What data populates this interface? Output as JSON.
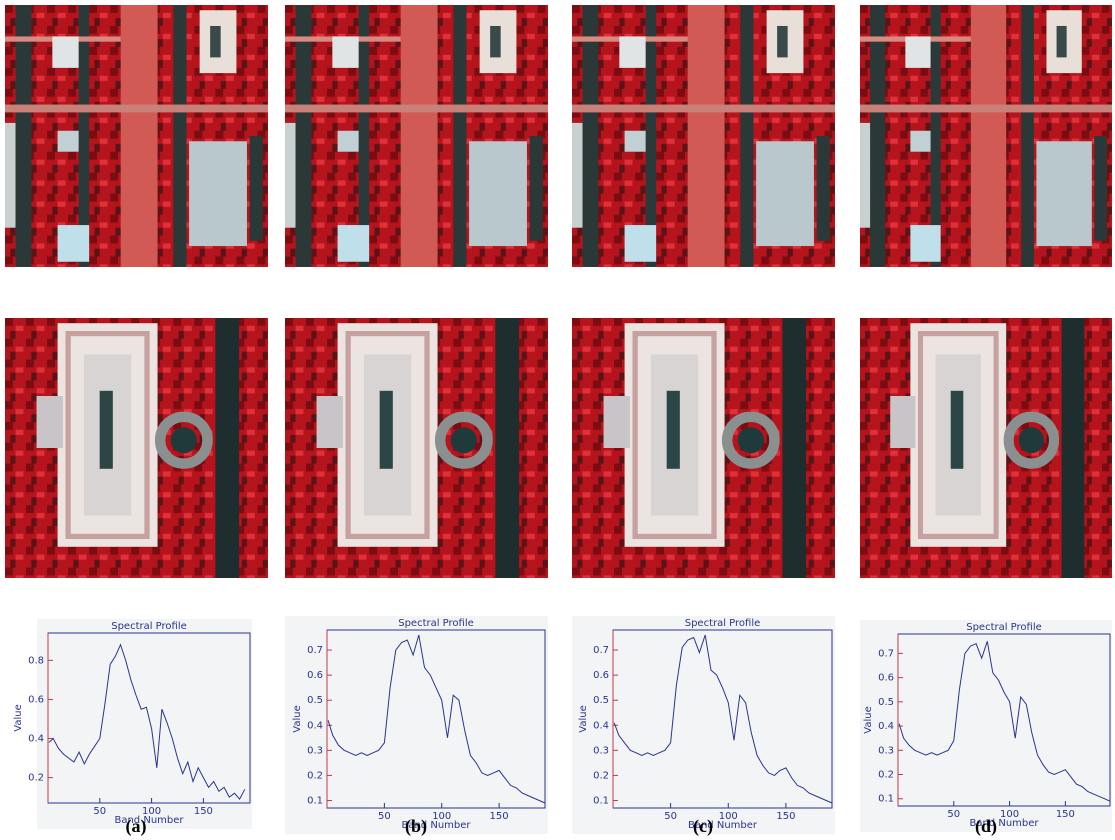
{
  "labels": [
    "(a)",
    "(b)",
    "(c)",
    "(d)"
  ],
  "chart_data": [
    {
      "type": "line",
      "title": "Spectral Profile",
      "x_label": "Band Number",
      "y_label": "Value",
      "color": "#27358f",
      "x": [
        1,
        5,
        10,
        15,
        20,
        25,
        30,
        35,
        40,
        45,
        50,
        55,
        60,
        65,
        70,
        75,
        80,
        85,
        90,
        95,
        100,
        105,
        110,
        115,
        120,
        125,
        130,
        135,
        140,
        145,
        150,
        155,
        160,
        165,
        170,
        175,
        180,
        185,
        190
      ],
      "values": [
        0.38,
        0.4,
        0.35,
        0.32,
        0.3,
        0.28,
        0.33,
        0.27,
        0.32,
        0.36,
        0.4,
        0.58,
        0.78,
        0.82,
        0.88,
        0.8,
        0.7,
        0.62,
        0.55,
        0.56,
        0.45,
        0.25,
        0.55,
        0.48,
        0.4,
        0.3,
        0.22,
        0.28,
        0.18,
        0.25,
        0.2,
        0.15,
        0.18,
        0.13,
        0.15,
        0.1,
        0.12,
        0.09,
        0.14
      ],
      "xlim": [
        0,
        195
      ],
      "ylim": [
        0.07,
        0.94
      ],
      "xticks": [
        50,
        100,
        150
      ],
      "yticks": [
        0.2,
        0.4,
        0.6,
        0.8
      ]
    },
    {
      "type": "line",
      "title": "Spectral Profile",
      "x_label": "Band Number",
      "y_label": "Value",
      "color": "#27358f",
      "x": [
        1,
        5,
        10,
        15,
        20,
        25,
        30,
        35,
        40,
        45,
        50,
        55,
        60,
        65,
        70,
        75,
        80,
        85,
        90,
        95,
        100,
        105,
        110,
        115,
        120,
        125,
        130,
        135,
        140,
        145,
        150,
        155,
        160,
        165,
        170,
        175,
        180,
        185,
        190
      ],
      "values": [
        0.42,
        0.36,
        0.32,
        0.3,
        0.29,
        0.28,
        0.29,
        0.28,
        0.29,
        0.3,
        0.33,
        0.55,
        0.7,
        0.73,
        0.74,
        0.68,
        0.76,
        0.63,
        0.6,
        0.55,
        0.5,
        0.35,
        0.52,
        0.5,
        0.38,
        0.28,
        0.25,
        0.21,
        0.2,
        0.21,
        0.22,
        0.19,
        0.16,
        0.15,
        0.13,
        0.12,
        0.11,
        0.1,
        0.09
      ],
      "xlim": [
        0,
        190
      ],
      "ylim": [
        0.07,
        0.78
      ],
      "xticks": [
        50,
        100,
        150
      ],
      "yticks": [
        0.1,
        0.2,
        0.3,
        0.4,
        0.5,
        0.6,
        0.7
      ]
    },
    {
      "type": "line",
      "title": "Spectral Profile",
      "x_label": "Band Number",
      "y_label": "Value",
      "color": "#27358f",
      "x": [
        1,
        5,
        10,
        15,
        20,
        25,
        30,
        35,
        40,
        45,
        50,
        55,
        60,
        65,
        70,
        75,
        80,
        85,
        90,
        95,
        100,
        105,
        110,
        115,
        120,
        125,
        130,
        135,
        140,
        145,
        150,
        155,
        160,
        165,
        170,
        175,
        180,
        185,
        190
      ],
      "values": [
        0.41,
        0.36,
        0.33,
        0.3,
        0.29,
        0.28,
        0.29,
        0.28,
        0.29,
        0.3,
        0.33,
        0.56,
        0.71,
        0.74,
        0.75,
        0.69,
        0.76,
        0.62,
        0.6,
        0.55,
        0.49,
        0.34,
        0.52,
        0.49,
        0.37,
        0.28,
        0.24,
        0.21,
        0.2,
        0.22,
        0.23,
        0.19,
        0.16,
        0.15,
        0.13,
        0.12,
        0.11,
        0.1,
        0.09
      ],
      "xlim": [
        0,
        190
      ],
      "ylim": [
        0.07,
        0.78
      ],
      "xticks": [
        50,
        100,
        150
      ],
      "yticks": [
        0.1,
        0.2,
        0.3,
        0.4,
        0.5,
        0.6,
        0.7
      ]
    },
    {
      "type": "line",
      "title": "Spectral Profile",
      "x_label": "Band Number",
      "y_label": "Value",
      "color": "#27358f",
      "x": [
        1,
        5,
        10,
        15,
        20,
        25,
        30,
        35,
        40,
        45,
        50,
        55,
        60,
        65,
        70,
        75,
        80,
        85,
        90,
        95,
        100,
        105,
        110,
        115,
        120,
        125,
        130,
        135,
        140,
        145,
        150,
        155,
        160,
        165,
        170,
        175,
        180,
        185,
        190
      ],
      "values": [
        0.41,
        0.35,
        0.32,
        0.3,
        0.29,
        0.28,
        0.29,
        0.28,
        0.29,
        0.3,
        0.34,
        0.55,
        0.7,
        0.73,
        0.74,
        0.68,
        0.75,
        0.62,
        0.59,
        0.54,
        0.5,
        0.35,
        0.52,
        0.49,
        0.37,
        0.28,
        0.24,
        0.21,
        0.2,
        0.21,
        0.22,
        0.19,
        0.16,
        0.15,
        0.13,
        0.12,
        0.11,
        0.1,
        0.09
      ],
      "xlim": [
        0,
        190
      ],
      "ylim": [
        0.07,
        0.78
      ],
      "xticks": [
        50,
        100,
        150
      ],
      "yticks": [
        0.1,
        0.2,
        0.3,
        0.4,
        0.5,
        0.6,
        0.7
      ]
    }
  ]
}
